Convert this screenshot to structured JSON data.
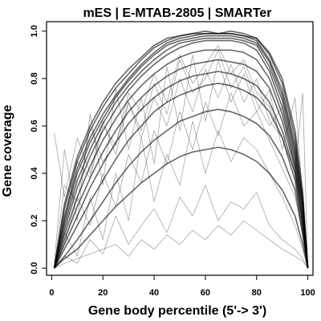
{
  "chart_data": {
    "type": "line",
    "title": "mES | E-MTAB-2805 | SMARTer",
    "xlabel": "Gene body percentile (5'-> 3')",
    "ylabel": "Gene coverage",
    "xlim": [
      -2,
      102
    ],
    "ylim": [
      -0.03,
      1.04
    ],
    "x_ticks": [
      0,
      20,
      40,
      60,
      80,
      100
    ],
    "y_ticks": [
      0.0,
      0.2,
      0.4,
      0.6,
      0.8,
      1.0
    ],
    "x_tick_labels": [
      "0",
      "20",
      "40",
      "60",
      "80",
      "100"
    ],
    "y_tick_labels": [
      "0.0",
      "0.2",
      "0.4",
      "0.6",
      "0.8",
      "1.0"
    ],
    "grid": false,
    "line_color": "#000000",
    "x": [
      1,
      5,
      10,
      15,
      20,
      25,
      30,
      35,
      40,
      45,
      50,
      55,
      60,
      65,
      70,
      75,
      80,
      85,
      90,
      95,
      98,
      100
    ],
    "series": [
      {
        "values": [
          0.0,
          0.25,
          0.45,
          0.58,
          0.68,
          0.76,
          0.82,
          0.88,
          0.93,
          0.96,
          0.98,
          0.99,
          0.99,
          0.99,
          0.99,
          0.98,
          0.97,
          0.9,
          0.78,
          0.55,
          0.3,
          0.0
        ]
      },
      {
        "values": [
          0.0,
          0.22,
          0.42,
          0.55,
          0.65,
          0.73,
          0.8,
          0.86,
          0.91,
          0.95,
          0.97,
          0.98,
          0.99,
          0.99,
          0.99,
          0.98,
          0.96,
          0.88,
          0.75,
          0.52,
          0.28,
          0.0
        ]
      },
      {
        "values": [
          0.0,
          0.2,
          0.4,
          0.53,
          0.63,
          0.72,
          0.79,
          0.85,
          0.9,
          0.94,
          0.96,
          0.97,
          0.98,
          0.98,
          0.98,
          0.97,
          0.95,
          0.87,
          0.73,
          0.5,
          0.27,
          0.0
        ]
      },
      {
        "values": [
          0.0,
          0.18,
          0.37,
          0.5,
          0.61,
          0.7,
          0.77,
          0.83,
          0.88,
          0.92,
          0.95,
          0.96,
          0.97,
          0.97,
          0.97,
          0.96,
          0.94,
          0.85,
          0.71,
          0.48,
          0.26,
          0.0
        ]
      },
      {
        "values": [
          0.0,
          0.16,
          0.34,
          0.47,
          0.58,
          0.67,
          0.75,
          0.81,
          0.86,
          0.9,
          0.93,
          0.95,
          0.96,
          0.96,
          0.96,
          0.95,
          0.92,
          0.83,
          0.68,
          0.46,
          0.24,
          0.0
        ]
      },
      {
        "values": [
          0.0,
          0.27,
          0.47,
          0.6,
          0.7,
          0.78,
          0.84,
          0.89,
          0.94,
          0.97,
          0.98,
          0.99,
          1.0,
          0.99,
          1.0,
          0.99,
          0.97,
          0.91,
          0.8,
          0.58,
          0.32,
          0.0
        ]
      },
      {
        "values": [
          0.0,
          0.14,
          0.3,
          0.43,
          0.54,
          0.63,
          0.71,
          0.77,
          0.82,
          0.86,
          0.89,
          0.91,
          0.92,
          0.92,
          0.92,
          0.91,
          0.88,
          0.8,
          0.65,
          0.44,
          0.22,
          0.0
        ]
      },
      {
        "values": [
          0.0,
          0.12,
          0.26,
          0.38,
          0.49,
          0.58,
          0.66,
          0.72,
          0.77,
          0.81,
          0.84,
          0.86,
          0.87,
          0.88,
          0.87,
          0.86,
          0.83,
          0.76,
          0.62,
          0.42,
          0.2,
          0.0
        ]
      },
      {
        "values": [
          0.0,
          0.1,
          0.22,
          0.34,
          0.44,
          0.53,
          0.61,
          0.67,
          0.72,
          0.76,
          0.79,
          0.81,
          0.82,
          0.83,
          0.82,
          0.8,
          0.77,
          0.7,
          0.58,
          0.4,
          0.18,
          0.0
        ]
      },
      {
        "values": [
          0.0,
          0.08,
          0.18,
          0.28,
          0.37,
          0.46,
          0.54,
          0.6,
          0.66,
          0.7,
          0.73,
          0.75,
          0.77,
          0.78,
          0.77,
          0.75,
          0.72,
          0.66,
          0.55,
          0.37,
          0.16,
          0.0
        ]
      },
      {
        "values": [
          0.0,
          0.05,
          0.12,
          0.2,
          0.28,
          0.36,
          0.43,
          0.49,
          0.54,
          0.58,
          0.62,
          0.64,
          0.66,
          0.67,
          0.66,
          0.64,
          0.61,
          0.56,
          0.47,
          0.33,
          0.14,
          0.0
        ]
      },
      {
        "values": [
          0.0,
          0.04,
          0.08,
          0.14,
          0.2,
          0.26,
          0.31,
          0.36,
          0.4,
          0.44,
          0.47,
          0.49,
          0.5,
          0.51,
          0.5,
          0.48,
          0.45,
          0.4,
          0.33,
          0.22,
          0.1,
          0.0
        ]
      },
      {
        "values": [
          0.57,
          0.3,
          0.55,
          0.4,
          0.62,
          0.48,
          0.7,
          0.55,
          0.72,
          0.6,
          0.8,
          0.66,
          0.84,
          0.72,
          0.86,
          0.7,
          0.8,
          0.62,
          0.55,
          0.4,
          0.28,
          0.0
        ]
      },
      {
        "values": [
          0.02,
          0.5,
          0.2,
          0.65,
          0.35,
          0.76,
          0.5,
          0.72,
          0.44,
          0.85,
          0.58,
          0.9,
          0.62,
          0.88,
          0.7,
          0.82,
          0.66,
          0.75,
          0.5,
          0.72,
          0.3,
          0.0
        ]
      },
      {
        "values": [
          0.0,
          0.15,
          0.05,
          0.3,
          0.12,
          0.4,
          0.2,
          0.55,
          0.28,
          0.48,
          0.35,
          0.62,
          0.4,
          0.58,
          0.45,
          0.55,
          0.5,
          0.4,
          0.3,
          0.18,
          0.08,
          0.0
        ]
      },
      {
        "values": [
          0.0,
          0.05,
          0.02,
          0.12,
          0.06,
          0.22,
          0.1,
          0.18,
          0.25,
          0.15,
          0.3,
          0.22,
          0.35,
          0.2,
          0.28,
          0.25,
          0.32,
          0.18,
          0.12,
          0.08,
          0.04,
          0.0
        ]
      },
      {
        "values": [
          0.0,
          0.35,
          0.28,
          0.6,
          0.45,
          0.52,
          0.7,
          0.58,
          0.78,
          0.65,
          0.88,
          0.74,
          0.8,
          0.92,
          0.76,
          0.85,
          0.7,
          0.6,
          0.68,
          0.42,
          0.74,
          0.0
        ]
      },
      {
        "values": [
          0.0,
          0.1,
          0.3,
          0.18,
          0.4,
          0.26,
          0.48,
          0.36,
          0.58,
          0.44,
          0.66,
          0.5,
          0.7,
          0.56,
          0.74,
          0.6,
          0.66,
          0.54,
          0.42,
          0.3,
          0.15,
          0.0
        ]
      },
      {
        "values": [
          0.0,
          0.02,
          0.04,
          0.06,
          0.08,
          0.1,
          0.05,
          0.12,
          0.08,
          0.14,
          0.1,
          0.16,
          0.12,
          0.18,
          0.14,
          0.2,
          0.16,
          0.12,
          0.08,
          0.05,
          0.03,
          0.0
        ]
      },
      {
        "values": [
          0.0,
          0.2,
          0.45,
          0.38,
          0.6,
          0.52,
          0.74,
          0.66,
          0.82,
          0.7,
          0.9,
          0.78,
          0.86,
          0.94,
          0.82,
          0.88,
          0.74,
          0.68,
          0.55,
          0.4,
          0.2,
          0.0
        ]
      }
    ]
  }
}
